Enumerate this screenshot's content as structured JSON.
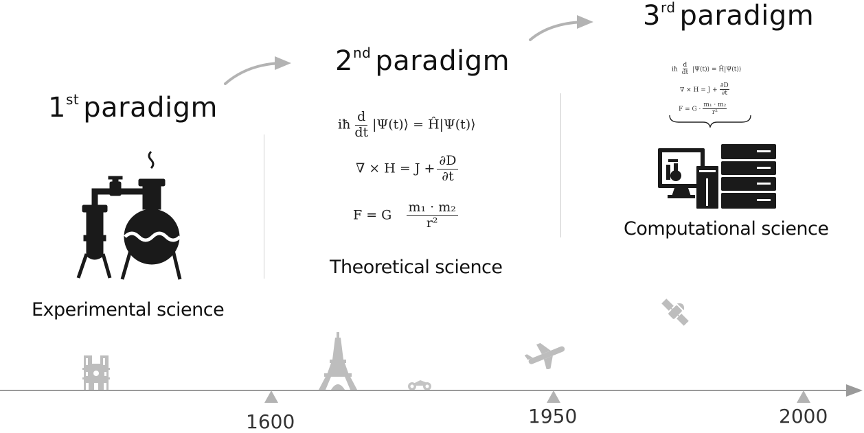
{
  "paradigms": [
    {
      "num": "1",
      "suffix": "st",
      "word": "paradigm",
      "caption": "Experimental science"
    },
    {
      "num": "2",
      "suffix": "nd",
      "word": "paradigm",
      "caption": "Theoretical science"
    },
    {
      "num": "3",
      "suffix": "rd",
      "word": "paradigm",
      "caption": "Computational science"
    }
  ],
  "equations": {
    "schrodinger": {
      "left": "iħ",
      "num": "d",
      "den": "dt",
      "rest": "|Ψ(t)⟩ = Ĥ|Ψ(t)⟩"
    },
    "maxwell": {
      "left": "∇ × H = J +",
      "num": "∂D",
      "den": "∂t"
    },
    "gravity": {
      "left": "F = G",
      "num": "m₁ · m₂",
      "den": "r²"
    },
    "gravity_small_left": "F = G ·"
  },
  "timeline": {
    "years": [
      "1600",
      "1950",
      "2000"
    ]
  },
  "icons": [
    "chemistry-flasks-icon",
    "computer-server-icon",
    "cathedral-icon",
    "eiffel-tower-icon",
    "motorcycle-icon",
    "airplane-icon",
    "satellite-icon"
  ],
  "colors": {
    "arrow": "#b3b3b3",
    "timeline": "#9a9a9a",
    "icon_dark": "#1a1a1a",
    "icon_light": "#bdbdbd"
  }
}
